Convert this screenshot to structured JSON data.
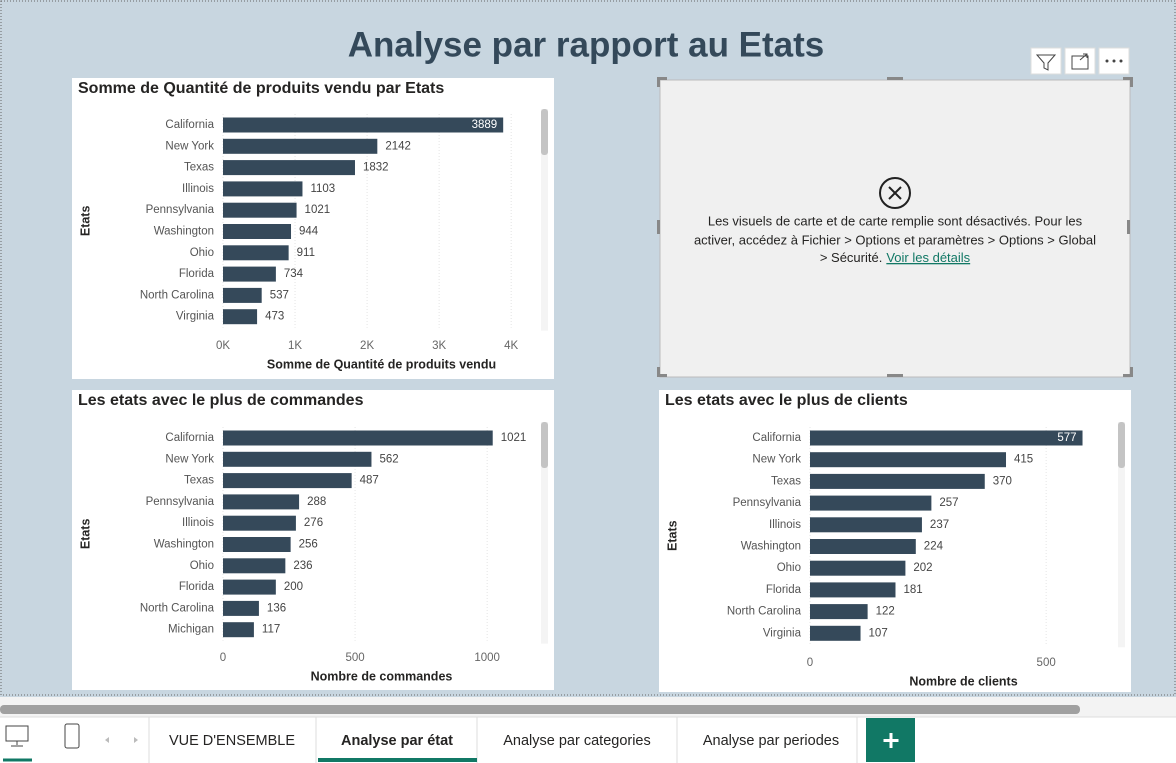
{
  "title": "Analyse par rapport au Etats",
  "chart_data": [
    {
      "type": "bar",
      "orientation": "horizontal",
      "title": "Somme de Quantité de produits vendu par Etats",
      "x_label": "Somme de Quantité de produits vendu",
      "y_label": "Etats",
      "categories": [
        "California",
        "New York",
        "Texas",
        "Illinois",
        "Pennsylvania",
        "Washington",
        "Ohio",
        "Florida",
        "North Carolina",
        "Virginia"
      ],
      "values": [
        3889,
        2142,
        1832,
        1103,
        1021,
        944,
        911,
        734,
        537,
        473
      ],
      "color": "#35495a",
      "xlim": [
        0,
        4400
      ],
      "xticks": [
        {
          "value": 0,
          "label": "0K"
        },
        {
          "value": 1000,
          "label": "1K"
        },
        {
          "value": 2000,
          "label": "2K"
        },
        {
          "value": 3000,
          "label": "3K"
        },
        {
          "value": 4000,
          "label": "4K"
        }
      ],
      "grid": true
    },
    {
      "type": "bar",
      "orientation": "horizontal",
      "title": "Les etats avec le plus de commandes",
      "x_label": "Nombre de commandes",
      "y_label": "Etats",
      "categories": [
        "California",
        "New York",
        "Texas",
        "Pennsylvania",
        "Illinois",
        "Washington",
        "Ohio",
        "Florida",
        "North Carolina",
        "Michigan"
      ],
      "values": [
        1021,
        562,
        487,
        288,
        276,
        256,
        236,
        200,
        136,
        117
      ],
      "color": "#35495a",
      "xlim": [
        0,
        1200
      ],
      "xticks": [
        0,
        500,
        1000
      ],
      "grid": true
    },
    {
      "type": "bar",
      "orientation": "horizontal",
      "title": "Les etats avec le plus de clients",
      "x_label": "Nombre de clients",
      "y_label": "Etats",
      "categories": [
        "California",
        "New York",
        "Texas",
        "Pennsylvania",
        "Illinois",
        "Washington",
        "Ohio",
        "Florida",
        "North Carolina",
        "Virginia"
      ],
      "values": [
        577,
        415,
        370,
        257,
        237,
        224,
        202,
        181,
        122,
        107
      ],
      "color": "#35495a",
      "xlim": [
        0,
        650
      ],
      "xticks": [
        0,
        500
      ],
      "grid": true
    }
  ],
  "map_notice": {
    "lines": [
      "Les visuels de carte et de carte remplie sont désactivés. Pour les",
      "activer, accédez à Fichier > Options et paramètres > Options > Global",
      "> Sécurité."
    ],
    "link": "Voir les détails"
  },
  "tabs": [
    "VUE D'ENSEMBLE",
    "Analyse par état",
    "Analyse par categories",
    "Analyse par periodes"
  ]
}
